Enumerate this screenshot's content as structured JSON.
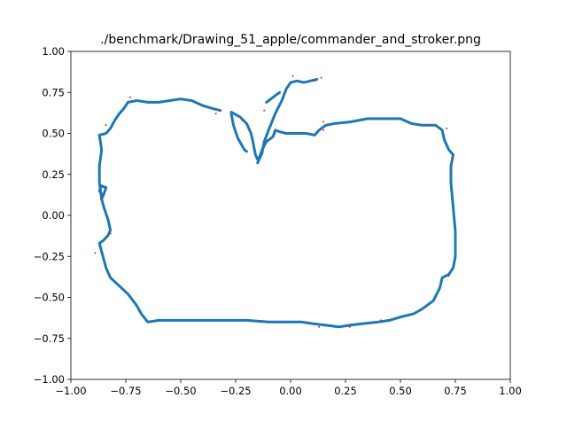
{
  "chart_data": {
    "type": "line",
    "title": "./benchmark/Drawing_51_apple/commander_and_stroker.png",
    "xlabel": "",
    "ylabel": "",
    "xlim": [
      -1.0,
      1.0
    ],
    "ylim": [
      -1.0,
      1.0
    ],
    "xticks": [
      "−1.00",
      "−0.75",
      "−0.50",
      "−0.25",
      "0.00",
      "0.25",
      "0.50",
      "0.75",
      "1.00"
    ],
    "yticks": [
      "−1.00",
      "−0.75",
      "−0.50",
      "−0.25",
      "0.00",
      "0.25",
      "0.50",
      "0.75",
      "1.00"
    ],
    "xtick_values": [
      -1.0,
      -0.75,
      -0.5,
      -0.25,
      0.0,
      0.25,
      0.5,
      0.75,
      1.0
    ],
    "ytick_values": [
      -1.0,
      -0.75,
      -0.5,
      -0.25,
      0.0,
      0.25,
      0.5,
      0.75,
      1.0
    ],
    "grid": false,
    "series": [
      {
        "color": "#1f77b4",
        "points": [
          [
            -0.87,
            0.49
          ],
          [
            -0.84,
            0.5
          ],
          [
            -0.82,
            0.53
          ],
          [
            -0.8,
            0.58
          ],
          [
            -0.78,
            0.62
          ],
          [
            -0.76,
            0.65
          ],
          [
            -0.74,
            0.69
          ],
          [
            -0.7,
            0.7
          ],
          [
            -0.65,
            0.69
          ],
          [
            -0.6,
            0.69
          ],
          [
            -0.55,
            0.7
          ],
          [
            -0.5,
            0.71
          ],
          [
            -0.45,
            0.7
          ],
          [
            -0.4,
            0.67
          ],
          [
            -0.35,
            0.65
          ],
          [
            -0.32,
            0.64
          ]
        ]
      },
      {
        "color": "#1f77b4",
        "points": [
          [
            -0.27,
            0.62
          ],
          [
            -0.26,
            0.55
          ],
          [
            -0.24,
            0.47
          ],
          [
            -0.21,
            0.4
          ],
          [
            -0.2,
            0.39
          ]
        ]
      },
      {
        "color": "#1f77b4",
        "points": [
          [
            -0.27,
            0.63
          ],
          [
            -0.23,
            0.6
          ],
          [
            -0.2,
            0.56
          ],
          [
            -0.18,
            0.5
          ],
          [
            -0.17,
            0.44
          ],
          [
            -0.16,
            0.37
          ],
          [
            -0.15,
            0.34
          ],
          [
            -0.14,
            0.36
          ],
          [
            -0.13,
            0.4
          ],
          [
            -0.11,
            0.45
          ],
          [
            -0.08,
            0.48
          ],
          [
            -0.07,
            0.52
          ],
          [
            -0.05,
            0.51
          ],
          [
            -0.02,
            0.5
          ],
          [
            0.02,
            0.5
          ],
          [
            0.07,
            0.5
          ],
          [
            0.11,
            0.49
          ],
          [
            0.13,
            0.52
          ],
          [
            0.16,
            0.55
          ],
          [
            0.2,
            0.56
          ],
          [
            0.27,
            0.57
          ],
          [
            0.35,
            0.59
          ],
          [
            0.43,
            0.59
          ],
          [
            0.5,
            0.59
          ],
          [
            0.55,
            0.56
          ],
          [
            0.6,
            0.55
          ],
          [
            0.66,
            0.55
          ],
          [
            0.69,
            0.52
          ],
          [
            0.7,
            0.46
          ],
          [
            0.72,
            0.4
          ],
          [
            0.74,
            0.37
          ],
          [
            0.73,
            0.3
          ],
          [
            0.73,
            0.2
          ],
          [
            0.74,
            0.05
          ],
          [
            0.75,
            -0.1
          ],
          [
            0.75,
            -0.25
          ],
          [
            0.74,
            -0.32
          ],
          [
            0.72,
            -0.36
          ],
          [
            0.69,
            -0.38
          ],
          [
            0.68,
            -0.44
          ],
          [
            0.65,
            -0.52
          ],
          [
            0.6,
            -0.57
          ],
          [
            0.56,
            -0.6
          ],
          [
            0.5,
            -0.62
          ],
          [
            0.45,
            -0.64
          ],
          [
            0.4,
            -0.65
          ],
          [
            0.33,
            -0.66
          ],
          [
            0.27,
            -0.67
          ],
          [
            0.22,
            -0.68
          ],
          [
            0.16,
            -0.67
          ],
          [
            0.1,
            -0.66
          ],
          [
            0.05,
            -0.65
          ],
          [
            0.0,
            -0.65
          ],
          [
            -0.1,
            -0.65
          ],
          [
            -0.2,
            -0.64
          ],
          [
            -0.3,
            -0.64
          ],
          [
            -0.4,
            -0.64
          ],
          [
            -0.5,
            -0.64
          ],
          [
            -0.6,
            -0.64
          ],
          [
            -0.65,
            -0.65
          ],
          [
            -0.68,
            -0.6
          ],
          [
            -0.7,
            -0.55
          ],
          [
            -0.74,
            -0.48
          ],
          [
            -0.78,
            -0.43
          ],
          [
            -0.82,
            -0.38
          ],
          [
            -0.84,
            -0.32
          ],
          [
            -0.85,
            -0.27
          ],
          [
            -0.86,
            -0.22
          ],
          [
            -0.87,
            -0.17
          ],
          [
            -0.85,
            -0.15
          ],
          [
            -0.83,
            -0.12
          ],
          [
            -0.82,
            -0.09
          ],
          [
            -0.83,
            -0.03
          ],
          [
            -0.85,
            0.05
          ],
          [
            -0.86,
            0.1
          ],
          [
            -0.86,
            0.13
          ],
          [
            -0.87,
            0.15
          ],
          [
            -0.86,
            0.18
          ],
          [
            -0.84,
            0.17
          ],
          [
            -0.85,
            0.13
          ],
          [
            -0.86,
            0.1
          ],
          [
            -0.87,
            0.2
          ],
          [
            -0.87,
            0.3
          ],
          [
            -0.86,
            0.4
          ],
          [
            -0.87,
            0.49
          ]
        ]
      },
      {
        "color": "#1f77b4",
        "points": [
          [
            -0.15,
            0.32
          ],
          [
            -0.13,
            0.38
          ],
          [
            -0.12,
            0.45
          ],
          [
            -0.1,
            0.52
          ],
          [
            -0.07,
            0.62
          ],
          [
            -0.04,
            0.7
          ],
          [
            -0.02,
            0.77
          ],
          [
            0.0,
            0.81
          ],
          [
            0.03,
            0.82
          ],
          [
            0.06,
            0.81
          ],
          [
            0.09,
            0.82
          ],
          [
            0.12,
            0.83
          ]
        ]
      },
      {
        "color": "#1f77b4",
        "points": [
          [
            -0.11,
            0.69
          ],
          [
            -0.07,
            0.73
          ],
          [
            -0.05,
            0.75
          ]
        ]
      }
    ],
    "markers": {
      "color": "#d62728",
      "points": [
        [
          -0.73,
          0.72
        ],
        [
          -0.84,
          0.55
        ],
        [
          -0.34,
          0.62
        ],
        [
          -0.32,
          0.64
        ],
        [
          -0.22,
          0.58
        ],
        [
          -0.12,
          0.64
        ],
        [
          -0.07,
          0.5
        ],
        [
          0.01,
          0.85
        ],
        [
          0.11,
          0.82
        ],
        [
          0.14,
          0.84
        ],
        [
          0.15,
          0.57
        ],
        [
          0.15,
          0.52
        ],
        [
          0.63,
          0.55
        ],
        [
          0.71,
          0.53
        ],
        [
          0.74,
          0.35
        ],
        [
          0.72,
          -0.37
        ],
        [
          0.13,
          -0.68
        ],
        [
          0.27,
          -0.68
        ],
        [
          0.41,
          -0.64
        ],
        [
          -0.86,
          0.1
        ],
        [
          -0.89,
          -0.23
        ],
        [
          -0.82,
          -0.11
        ]
      ]
    }
  }
}
